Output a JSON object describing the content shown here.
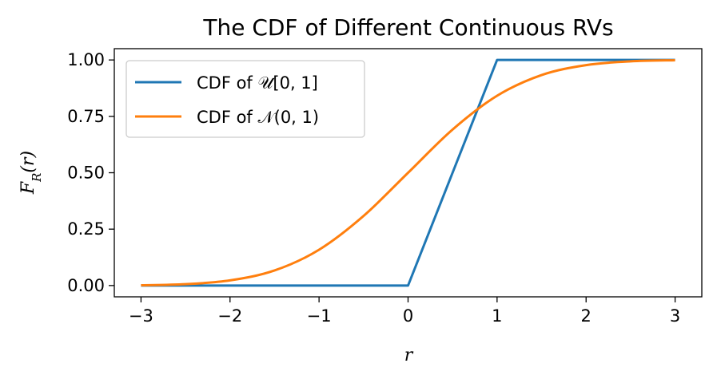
{
  "chart_data": {
    "type": "line",
    "title": "The CDF of Different Continuous RVs",
    "xlabel": "r",
    "ylabel": "F_R(r)",
    "xlim": [
      -3.3,
      3.3
    ],
    "ylim": [
      -0.05,
      1.05
    ],
    "xticks": [
      -3,
      -2,
      -1,
      0,
      1,
      2,
      3
    ],
    "xtick_labels": [
      "−3",
      "−2",
      "−1",
      "0",
      "1",
      "2",
      "3"
    ],
    "yticks": [
      0.0,
      0.25,
      0.5,
      0.75,
      1.0
    ],
    "ytick_labels": [
      "0.00",
      "0.25",
      "0.50",
      "0.75",
      "1.00"
    ],
    "grid": false,
    "legend_position": "top-left",
    "series": [
      {
        "name": "CDF of 𝒰[0, 1]",
        "color": "#1f77b4",
        "x": [
          -3,
          -2,
          -1,
          -0.03,
          0,
          0.03,
          0.5,
          1,
          1.03,
          2,
          3
        ],
        "y": [
          0,
          0,
          0,
          0,
          0,
          0.03,
          0.5,
          1,
          1,
          1,
          1
        ]
      },
      {
        "name": "CDF of 𝒩(0, 1)",
        "color": "#ff7f0e",
        "x": [
          -3,
          -2.5,
          -2,
          -1.5,
          -1,
          -0.5,
          0,
          0.5,
          1,
          1.5,
          2,
          2.5,
          3
        ],
        "y": [
          0.0013,
          0.0062,
          0.0228,
          0.0668,
          0.1587,
          0.3085,
          0.5,
          0.6915,
          0.8413,
          0.9332,
          0.9772,
          0.9938,
          0.9987
        ]
      }
    ]
  }
}
